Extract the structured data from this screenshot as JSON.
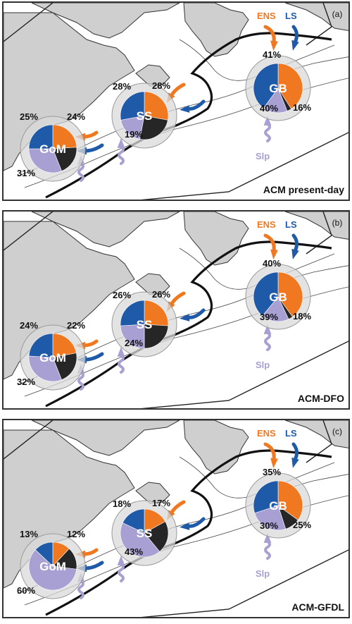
{
  "colors": {
    "ens": "#f07820",
    "ls": "#1f5aa8",
    "slp": "#a8a0d2",
    "resid": "#262626",
    "land": "#cfcfcf",
    "halo": "#d9d9d9"
  },
  "labels": {
    "ens": "ENS",
    "ls": "LS",
    "slp": "Slp"
  },
  "panels": [
    {
      "tag": "(a)",
      "title": "ACM present-day",
      "regions": [
        {
          "name": "GoM",
          "slices": [
            {
              "src": "ens",
              "value": 24,
              "label": "24%"
            },
            {
              "src": "resid",
              "value": 20,
              "label": ""
            },
            {
              "src": "slp",
              "value": 31,
              "label": "31%"
            },
            {
              "src": "ls",
              "value": 25,
              "label": "25%"
            }
          ]
        },
        {
          "name": "SS",
          "slices": [
            {
              "src": "ens",
              "value": 28,
              "label": "28%"
            },
            {
              "src": "resid",
              "value": 25,
              "label": ""
            },
            {
              "src": "slp",
              "value": 19,
              "label": "19%"
            },
            {
              "src": "ls",
              "value": 28,
              "label": "28%"
            }
          ]
        },
        {
          "name": "GB",
          "slices": [
            {
              "src": "ens",
              "value": 41,
              "label": "41%"
            },
            {
              "src": "resid",
              "value": 3,
              "label": ""
            },
            {
              "src": "slp",
              "value": 16,
              "label": "16%"
            },
            {
              "src": "ls",
              "value": 40,
              "label": "40%"
            }
          ]
        }
      ]
    },
    {
      "tag": "(b)",
      "title": "ACM-DFO",
      "regions": [
        {
          "name": "GoM",
          "slices": [
            {
              "src": "ens",
              "value": 22,
              "label": "22%"
            },
            {
              "src": "resid",
              "value": 22,
              "label": ""
            },
            {
              "src": "slp",
              "value": 32,
              "label": "32%"
            },
            {
              "src": "ls",
              "value": 24,
              "label": "24%"
            }
          ]
        },
        {
          "name": "SS",
          "slices": [
            {
              "src": "ens",
              "value": 26,
              "label": "26%"
            },
            {
              "src": "resid",
              "value": 24,
              "label": ""
            },
            {
              "src": "slp",
              "value": 24,
              "label": "24%"
            },
            {
              "src": "ls",
              "value": 26,
              "label": "26%"
            }
          ]
        },
        {
          "name": "GB",
          "slices": [
            {
              "src": "ens",
              "value": 40,
              "label": "40%"
            },
            {
              "src": "resid",
              "value": 3,
              "label": ""
            },
            {
              "src": "slp",
              "value": 18,
              "label": "18%"
            },
            {
              "src": "ls",
              "value": 39,
              "label": "39%"
            }
          ]
        }
      ]
    },
    {
      "tag": "(c)",
      "title": "ACM-GFDL",
      "regions": [
        {
          "name": "GoM",
          "slices": [
            {
              "src": "ens",
              "value": 12,
              "label": "12%"
            },
            {
              "src": "resid",
              "value": 15,
              "label": ""
            },
            {
              "src": "slp",
              "value": 60,
              "label": "60%"
            },
            {
              "src": "ls",
              "value": 13,
              "label": "13%"
            }
          ]
        },
        {
          "name": "SS",
          "slices": [
            {
              "src": "ens",
              "value": 17,
              "label": "17%"
            },
            {
              "src": "resid",
              "value": 22,
              "label": ""
            },
            {
              "src": "slp",
              "value": 43,
              "label": "43%"
            },
            {
              "src": "ls",
              "value": 18,
              "label": "18%"
            }
          ]
        },
        {
          "name": "GB",
          "slices": [
            {
              "src": "ens",
              "value": 35,
              "label": "35%"
            },
            {
              "src": "resid",
              "value": 10,
              "label": ""
            },
            {
              "src": "slp",
              "value": 25,
              "label": "25%"
            },
            {
              "src": "ls",
              "value": 30,
              "label": "30%"
            }
          ]
        }
      ]
    }
  ]
}
